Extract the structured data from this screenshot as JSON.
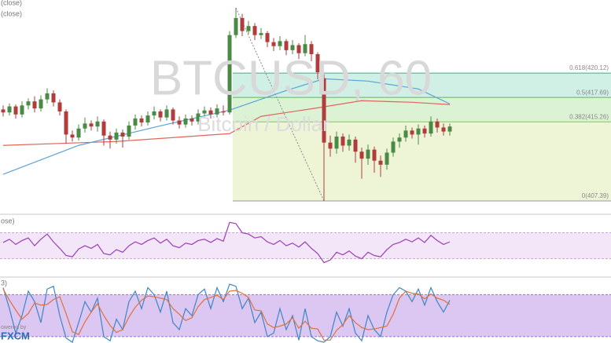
{
  "chart_data": [
    {
      "type": "candlestick",
      "title": "BTCUSD, 60",
      "subtitle": "Bitcoin / Dollar",
      "legend_labels": [
        "(close)",
        "(close)"
      ],
      "ylim": [
        406.3,
        427.0
      ],
      "colors": {
        "up": "#4a8a45",
        "down": "#b23c3c"
      },
      "open": [
        416.5,
        416.2,
        416.8,
        416.0,
        416.9,
        417.3,
        416.6,
        417.5,
        418.1,
        417.2,
        416.3,
        414.0,
        413.7,
        414.6,
        415.1,
        414.8,
        415.3,
        413.9,
        413.5,
        414.2,
        413.8,
        414.9,
        415.6,
        415.2,
        415.9,
        416.3,
        415.7,
        416.5,
        415.4,
        415.0,
        415.6,
        415.3,
        416.1,
        416.4,
        416.0,
        416.3,
        416.2,
        423.9,
        425.6,
        424.3,
        424.8,
        423.9,
        424.1,
        423.2,
        422.8,
        423.3,
        422.4,
        422.9,
        422.1,
        423.0,
        422.0,
        419.6,
        413.2,
        412.6,
        413.8,
        412.9,
        413.5,
        412.3,
        411.6,
        412.5,
        411.4,
        411.0,
        412.2,
        413.3,
        413.7,
        414.4,
        414.0,
        414.6,
        414.1,
        415.3,
        414.7,
        414.3
      ],
      "high": [
        416.9,
        417.1,
        417.0,
        417.3,
        417.6,
        417.8,
        417.9,
        418.6,
        418.4,
        417.5,
        416.5,
        414.4,
        415.0,
        415.7,
        415.4,
        415.8,
        415.5,
        414.3,
        414.6,
        414.5,
        415.3,
        416.0,
        415.9,
        416.3,
        416.8,
        416.5,
        416.9,
        416.7,
        415.8,
        416.0,
        415.9,
        416.5,
        416.8,
        416.7,
        417.0,
        416.9,
        424.3,
        426.6,
        426.0,
        425.3,
        425.1,
        424.6,
        424.3,
        423.6,
        423.8,
        423.5,
        423.4,
        423.1,
        423.9,
        423.3,
        422.2,
        420.0,
        413.9,
        414.3,
        414.1,
        414.0,
        413.8,
        412.7,
        413.0,
        412.8,
        411.9,
        412.6,
        413.7,
        414.1,
        414.9,
        414.7,
        415.0,
        414.9,
        415.8,
        415.6,
        415.1,
        415.1
      ],
      "low": [
        415.8,
        415.9,
        415.6,
        415.7,
        416.5,
        416.2,
        416.3,
        417.1,
        416.8,
        415.9,
        413.1,
        413.3,
        413.4,
        414.2,
        414.4,
        414.3,
        412.9,
        412.6,
        413.1,
        412.7,
        413.5,
        414.5,
        414.8,
        414.9,
        415.5,
        415.3,
        415.4,
        415.0,
        414.6,
        414.7,
        414.9,
        415.0,
        415.8,
        415.6,
        415.7,
        415.9,
        416.0,
        423.6,
        423.8,
        424.0,
        423.4,
        423.5,
        422.7,
        422.3,
        422.4,
        421.9,
        422.0,
        421.5,
        421.8,
        421.3,
        419.5,
        407.39,
        411.8,
        412.1,
        412.3,
        412.4,
        411.2,
        409.6,
        411.0,
        410.2,
        409.8,
        410.5,
        411.8,
        412.7,
        413.3,
        413.6,
        413.0,
        413.7,
        413.8,
        414.2,
        413.9,
        413.9
      ],
      "close": [
        416.2,
        416.8,
        416.0,
        416.9,
        417.3,
        416.6,
        417.5,
        418.1,
        417.2,
        416.3,
        414.0,
        413.7,
        414.6,
        415.1,
        414.8,
        415.3,
        413.9,
        413.5,
        414.2,
        413.8,
        414.9,
        415.6,
        415.2,
        415.9,
        416.3,
        415.7,
        416.5,
        415.4,
        415.0,
        415.6,
        415.3,
        416.1,
        416.4,
        416.0,
        416.6,
        416.2,
        423.9,
        425.6,
        424.3,
        424.8,
        423.9,
        424.1,
        423.2,
        422.8,
        423.3,
        422.4,
        422.9,
        422.1,
        423.0,
        422.0,
        420.2,
        413.2,
        412.6,
        413.8,
        412.9,
        413.5,
        412.3,
        411.6,
        412.5,
        411.4,
        411.0,
        412.2,
        413.3,
        413.7,
        414.4,
        414.0,
        414.6,
        414.1,
        415.3,
        414.7,
        414.3,
        414.8
      ],
      "overlays": [
        {
          "color": "#e0655c",
          "x": [
            0,
            18,
            36,
            41,
            50,
            57,
            65,
            71
          ],
          "values": [
            412.92,
            413.31,
            414.09,
            415.81,
            416.66,
            417.37,
            417.21,
            416.98
          ]
        },
        {
          "color": "#5aa3d6",
          "x": [
            0,
            12,
            25,
            36,
            45,
            51,
            58,
            66,
            71
          ],
          "values": [
            410.04,
            412.92,
            414.87,
            416.43,
            418.38,
            419.55,
            419.32,
            418.54,
            417.05
          ]
        }
      ],
      "fib_levels": [
        {
          "value": 420.12,
          "label": "0.618(420.12)",
          "color": "#3fae8c",
          "fill": "#c4ebde"
        },
        {
          "value": 417.69,
          "label": "0.5(417.69)",
          "color": "#58b85a",
          "fill": "#d3efcb"
        },
        {
          "value": 415.26,
          "label": "0.382(415.26)",
          "color": "#8cc84a",
          "fill": "#e8f3cc"
        },
        {
          "value": 407.39,
          "label": "0(407.39)",
          "color": "#9a9a9a"
        }
      ]
    },
    {
      "type": "line",
      "label": "ose)",
      "ylim": [
        3,
        96
      ],
      "band": [
        30,
        70
      ],
      "band_color": "#f3e6f8",
      "band_line": "#c9a2dc",
      "series": [
        {
          "color": "#9b3fb5",
          "values": [
            55,
            60,
            52,
            58,
            62,
            50,
            60,
            68,
            56,
            46,
            35,
            33,
            45,
            50,
            46,
            52,
            38,
            36,
            44,
            40,
            50,
            56,
            52,
            58,
            62,
            54,
            60,
            50,
            47,
            54,
            52,
            58,
            60,
            55,
            61,
            57,
            86,
            84,
            70,
            68,
            62,
            64,
            56,
            52,
            58,
            50,
            54,
            48,
            56,
            46,
            38,
            24,
            28,
            40,
            36,
            42,
            34,
            30,
            40,
            35,
            33,
            44,
            52,
            55,
            60,
            56,
            62,
            55,
            66,
            58,
            52,
            56
          ]
        }
      ]
    },
    {
      "type": "line",
      "label": "3)",
      "ylim": [
        12,
        104
      ],
      "band": [
        20,
        80
      ],
      "band_color": "#dcc6f2",
      "band_line": "#9c6fc7",
      "series": [
        {
          "color": "#3d86c6",
          "values": [
            90,
            60,
            25,
            50,
            85,
            70,
            40,
            88,
            92,
            50,
            18,
            12,
            40,
            70,
            55,
            75,
            20,
            14,
            45,
            30,
            70,
            85,
            60,
            90,
            80,
            55,
            85,
            40,
            30,
            60,
            50,
            80,
            88,
            60,
            90,
            70,
            95,
            92,
            60,
            75,
            40,
            55,
            20,
            25,
            60,
            30,
            50,
            15,
            60,
            20,
            14,
            12,
            20,
            55,
            35,
            60,
            25,
            14,
            50,
            30,
            20,
            55,
            80,
            90,
            85,
            70,
            88,
            65,
            90,
            70,
            55,
            72
          ]
        },
        {
          "color": "#e0703c",
          "values": [
            88,
            72,
            58,
            45,
            53,
            68,
            65,
            66,
            73,
            77,
            53,
            27,
            23,
            41,
            55,
            67,
            50,
            36,
            26,
            30,
            48,
            62,
            72,
            78,
            77,
            75,
            73,
            60,
            52,
            43,
            47,
            63,
            73,
            76,
            79,
            73,
            85,
            86,
            82,
            76,
            58,
            57,
            38,
            33,
            35,
            38,
            47,
            32,
            42,
            32,
            31,
            15,
            15,
            29,
            37,
            50,
            40,
            33,
            30,
            31,
            33,
            35,
            52,
            75,
            85,
            82,
            81,
            74,
            81,
            75,
            72,
            66
          ]
        }
      ]
    }
  ],
  "footer": {
    "powered": "owered by",
    "logo": "FXCM"
  }
}
